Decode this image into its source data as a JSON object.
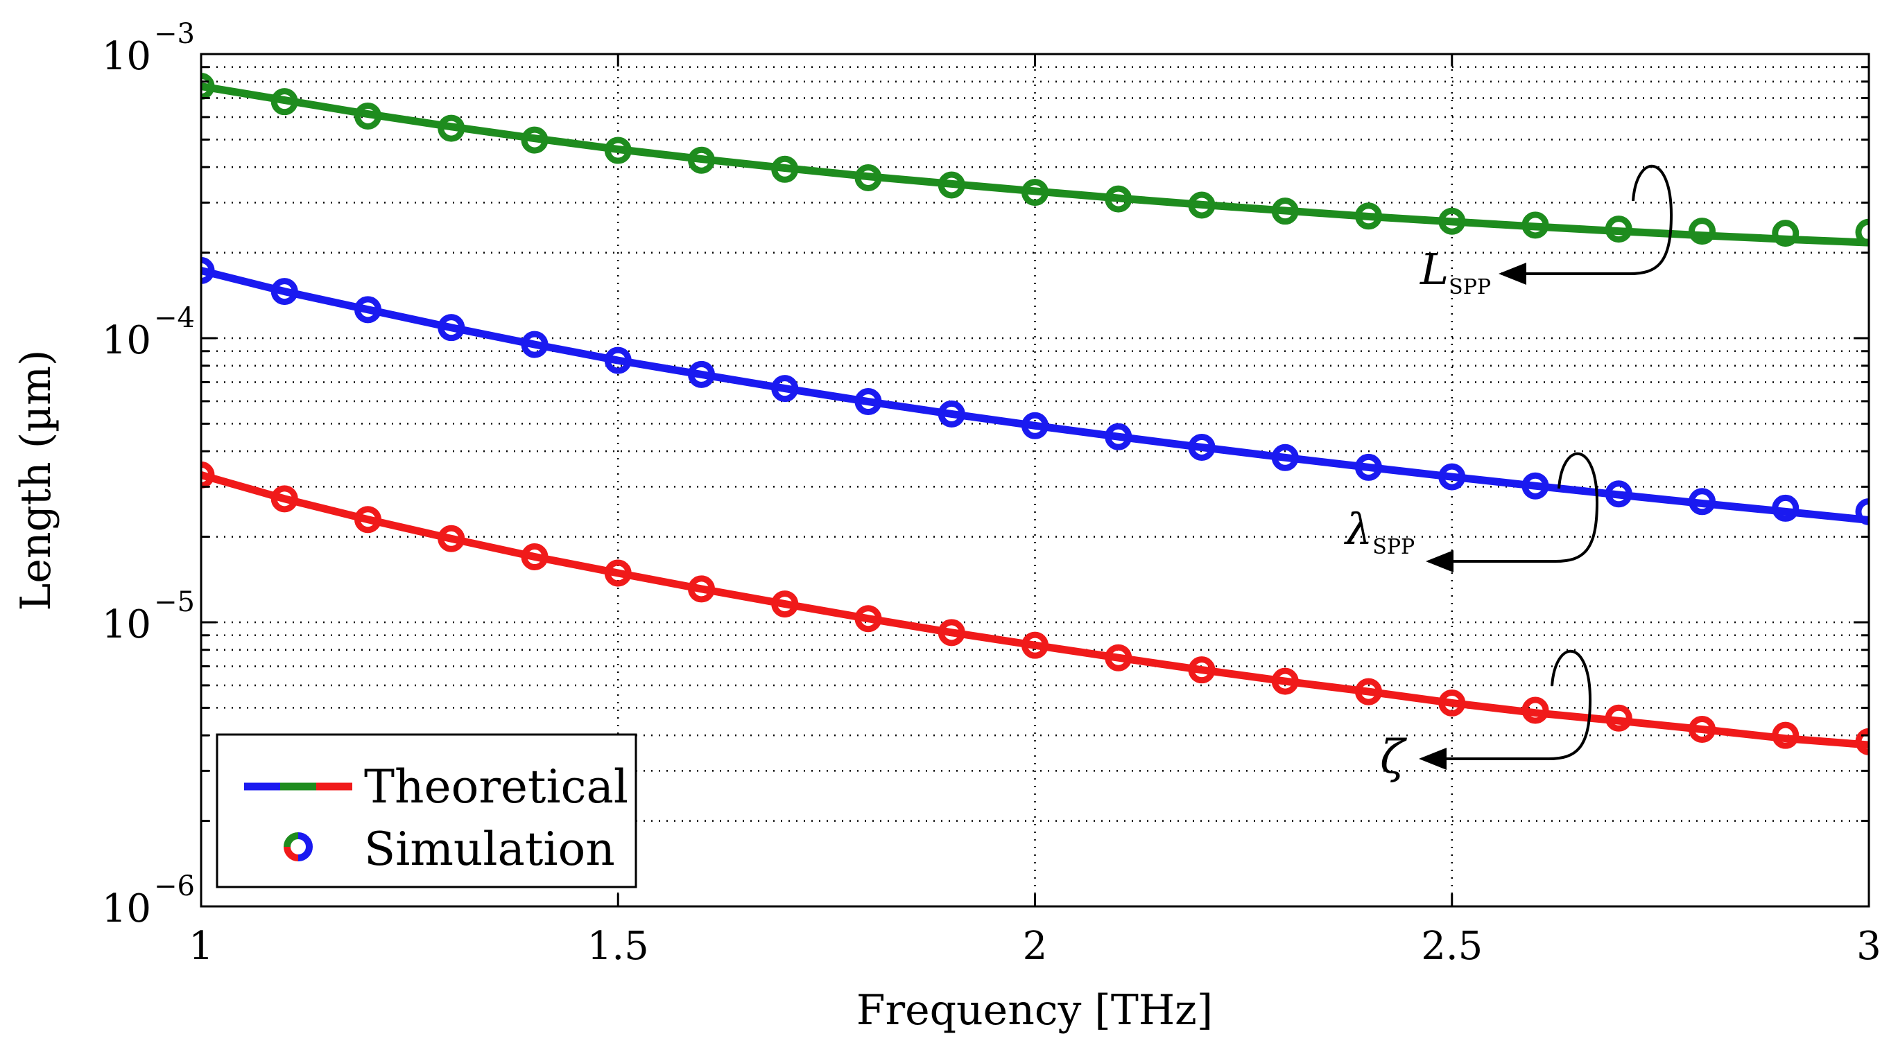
{
  "chart_data": {
    "type": "line",
    "title": "",
    "xlabel": "Frequency [THz]",
    "ylabel": "Length (µm)",
    "yscale": "log",
    "xlim": [
      1,
      3
    ],
    "ylim": [
      1e-06,
      0.001
    ],
    "grid": true,
    "x_ticks": [
      {
        "value": 1,
        "label": "1"
      },
      {
        "value": 1.5,
        "label": "1.5"
      },
      {
        "value": 2,
        "label": "2"
      },
      {
        "value": 2.5,
        "label": "2.5"
      },
      {
        "value": 3,
        "label": "3"
      }
    ],
    "y_ticks": [
      {
        "value": 1e-06,
        "base": "10",
        "exp": "−6"
      },
      {
        "value": 1e-05,
        "base": "10",
        "exp": "−5"
      },
      {
        "value": 0.0001,
        "base": "10",
        "exp": "−4"
      },
      {
        "value": 0.001,
        "base": "10",
        "exp": "−3"
      }
    ],
    "x": [
      1.0,
      1.1,
      1.2,
      1.3,
      1.4,
      1.5,
      1.6,
      1.7,
      1.8,
      1.9,
      2.0,
      2.1,
      2.2,
      2.3,
      2.4,
      2.5,
      2.6,
      2.7,
      2.8,
      2.9,
      3.0
    ],
    "series": [
      {
        "name": "L_SPP",
        "color": "#1e8c1e",
        "theoretical": [
          0.00077,
          0.000688,
          0.000615,
          0.000555,
          0.000505,
          0.000462,
          0.000427,
          0.000397,
          0.000371,
          0.000349,
          0.000329,
          0.000311,
          0.000295,
          0.000281,
          0.000268,
          0.000257,
          0.000247,
          0.000238,
          0.00023,
          0.000223,
          0.000217
        ],
        "simulation": [
          0.00077,
          0.00068,
          0.000605,
          0.000548,
          0.000498,
          0.000458,
          0.000423,
          0.000393,
          0.000367,
          0.000346,
          0.000326,
          0.000309,
          0.000294,
          0.00028,
          0.000269,
          0.000258,
          0.00025,
          0.000242,
          0.000238,
          0.000234,
          0.000236
        ]
      },
      {
        "name": "λ_SPP",
        "color": "#1a1af0",
        "theoretical": [
          0.000173,
          0.000146,
          0.000126,
          0.000109,
          9.5e-05,
          8.35e-05,
          7.45e-05,
          6.65e-05,
          5.98e-05,
          5.41e-05,
          4.92e-05,
          4.5e-05,
          4.13e-05,
          3.8e-05,
          3.51e-05,
          3.25e-05,
          3.02e-05,
          2.81e-05,
          2.62e-05,
          2.45e-05,
          2.29e-05
        ],
        "simulation": [
          0.000173,
          0.000146,
          0.000126,
          0.000109,
          9.5e-05,
          8.35e-05,
          7.45e-05,
          6.65e-05,
          5.98e-05,
          5.41e-05,
          4.92e-05,
          4.5e-05,
          4.13e-05,
          3.8e-05,
          3.51e-05,
          3.25e-05,
          3.02e-05,
          2.83e-05,
          2.66e-05,
          2.52e-05,
          2.45e-05
        ]
      },
      {
        "name": "ζ",
        "color": "#f01a1a",
        "theoretical": [
          3.3e-05,
          2.72e-05,
          2.3e-05,
          1.97e-05,
          1.7e-05,
          1.49e-05,
          1.31e-05,
          1.16e-05,
          1.03e-05,
          9.2e-06,
          8.3e-06,
          7.5e-06,
          6.8e-06,
          6.2e-06,
          5.7e-06,
          5.2e-06,
          4.8e-06,
          4.5e-06,
          4.2e-06,
          3.9e-06,
          3.7e-06
        ],
        "simulation": [
          3.3e-05,
          2.72e-05,
          2.3e-05,
          1.97e-05,
          1.7e-05,
          1.49e-05,
          1.31e-05,
          1.16e-05,
          1.03e-05,
          9.2e-06,
          8.3e-06,
          7.5e-06,
          6.8e-06,
          6.2e-06,
          5.7e-06,
          5.2e-06,
          4.9e-06,
          4.6e-06,
          4.2e-06,
          4e-06,
          3.8e-06
        ]
      }
    ],
    "legend": {
      "placement": "bottom-left",
      "entries": [
        {
          "label": "Theoretical",
          "style": "line"
        },
        {
          "label": "Simulation",
          "style": "marker"
        }
      ]
    },
    "annotations": [
      {
        "series": "L_SPP",
        "symbol": "L",
        "subscript": "SPP"
      },
      {
        "series": "λ_SPP",
        "symbol": "λ",
        "subscript": "SPP"
      },
      {
        "series": "ζ",
        "symbol": "ζ",
        "subscript": ""
      }
    ]
  }
}
